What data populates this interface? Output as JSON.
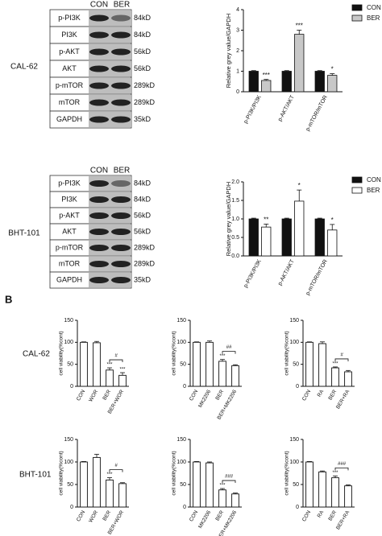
{
  "panel_label": "B",
  "blots": [
    {
      "cell_line": "CAL-62",
      "lanes": [
        "CON",
        "BER"
      ],
      "rows": [
        {
          "protein": "p-PI3K",
          "size": "84kD"
        },
        {
          "protein": "PI3K",
          "size": "84kD"
        },
        {
          "protein": "p-AKT",
          "size": "56kD"
        },
        {
          "protein": "AKT",
          "size": "56kD"
        },
        {
          "protein": "p-mTOR",
          "size": "289kD"
        },
        {
          "protein": "mTOR",
          "size": "289kD"
        },
        {
          "protein": "GAPDH",
          "size": "35kD"
        }
      ]
    },
    {
      "cell_line": "BHT-101",
      "lanes": [
        "CON",
        "BER"
      ],
      "rows": [
        {
          "protein": "p-PI3K",
          "size": "84kD"
        },
        {
          "protein": "PI3K",
          "size": "84kD"
        },
        {
          "protein": "p-AKT",
          "size": "56kD"
        },
        {
          "protein": "AKT",
          "size": "56kD"
        },
        {
          "protein": "p-mTOR",
          "size": "289kD"
        },
        {
          "protein": "mTOR",
          "size": "289kD"
        },
        {
          "protein": "GAPDH",
          "size": "35kD"
        }
      ]
    }
  ],
  "row_labels": [
    "CAL-62",
    "BHT-101"
  ],
  "chart_data": [
    {
      "type": "grouped_bar",
      "ylabel": "Relative grey value/GAPDH",
      "categories": [
        "p-PI3K/PI3K",
        "p-AKT/AKT",
        "p-mTOR/mTOR"
      ],
      "series": [
        {
          "name": "CON",
          "color": "#111111",
          "values": [
            1,
            1,
            1
          ],
          "errors": [
            0.03,
            0.03,
            0.03
          ]
        },
        {
          "name": "BER",
          "color": "#c8c8c8",
          "values": [
            0.55,
            2.8,
            0.8
          ],
          "errors": [
            0.05,
            0.2,
            0.08
          ],
          "annotations": [
            "***",
            "***",
            "*"
          ]
        }
      ],
      "ylim": [
        0,
        4
      ],
      "yticks": [
        0,
        1,
        2,
        3,
        4
      ],
      "legend": "right"
    },
    {
      "type": "grouped_bar",
      "ylabel": "Relative grey value/GAPDH",
      "categories": [
        "p-PI3K/PI3K",
        "p-AKT/AKT",
        "p-mTOR/mTOR"
      ],
      "series": [
        {
          "name": "CON",
          "color": "#111111",
          "values": [
            1,
            1,
            1
          ],
          "errors": [
            0.02,
            0.02,
            0.02
          ]
        },
        {
          "name": "BER",
          "color": "#ffffff",
          "values": [
            0.78,
            1.48,
            0.7
          ],
          "errors": [
            0.08,
            0.3,
            0.15
          ],
          "annotations": [
            "**",
            "*",
            "*"
          ]
        }
      ],
      "ylim": [
        0,
        2
      ],
      "yticks": [
        {
          "value": 0,
          "label": "0.0"
        },
        {
          "value": 0.5,
          "label": "0.5"
        },
        {
          "value": 1,
          "label": "1.0"
        },
        {
          "value": 1.5,
          "label": "1.5"
        },
        {
          "value": 2,
          "label": "2.0"
        }
      ],
      "legend": "right"
    },
    {
      "type": "bar",
      "ylabel": "cell viability(%cont)",
      "categories": [
        "CON",
        "WOR",
        "BER",
        "BER+WOR"
      ],
      "values": [
        100,
        99,
        37,
        25
      ],
      "errors": [
        1,
        3,
        5,
        6
      ],
      "annotations": [
        null,
        null,
        "***",
        "***"
      ],
      "bracket": "#",
      "color": "#ffffff",
      "ylim": [
        0,
        150
      ],
      "yticks": [
        0,
        50,
        100,
        150
      ]
    },
    {
      "type": "bar",
      "ylabel": "cell viability(%cont)",
      "categories": [
        "CON",
        "MK2206",
        "BER",
        "BER+MK2206"
      ],
      "values": [
        100,
        100,
        57,
        47
      ],
      "errors": [
        1,
        3,
        4,
        2
      ],
      "annotations": [
        null,
        null,
        "***",
        null
      ],
      "bracket": "##",
      "color": "#ffffff",
      "ylim": [
        0,
        150
      ],
      "yticks": [
        0,
        50,
        100,
        150
      ]
    },
    {
      "type": "bar",
      "ylabel": "cell viability(%cont)",
      "categories": [
        "CON",
        "RA",
        "BER",
        "BER+RA"
      ],
      "values": [
        100,
        97,
        42,
        33
      ],
      "errors": [
        1,
        4,
        2,
        3
      ],
      "annotations": [
        null,
        null,
        "***",
        null
      ],
      "bracket": "#",
      "color": "#ffffff",
      "ylim": [
        0,
        150
      ],
      "yticks": [
        0,
        50,
        100,
        150
      ]
    },
    {
      "type": "bar",
      "ylabel": "cell viability(%cont)",
      "categories": [
        "CON",
        "WOR",
        "BER",
        "BER+WOR"
      ],
      "values": [
        100,
        110,
        60,
        52
      ],
      "errors": [
        1,
        7,
        5,
        2
      ],
      "annotations": [
        null,
        null,
        "***",
        null
      ],
      "bracket": "#",
      "color": "#ffffff",
      "ylim": [
        0,
        150
      ],
      "yticks": [
        0,
        50,
        100,
        150
      ]
    },
    {
      "type": "bar",
      "ylabel": "cell viability(%cont)",
      "categories": [
        "CON",
        "MK2206",
        "BER",
        "BER+MK2206"
      ],
      "values": [
        100,
        98,
        38,
        29
      ],
      "errors": [
        1,
        2,
        3,
        2
      ],
      "annotations": [
        null,
        null,
        "***",
        null
      ],
      "bracket": "###",
      "color": "#ffffff",
      "ylim": [
        0,
        150
      ],
      "yticks": [
        0,
        50,
        100,
        150
      ]
    },
    {
      "type": "bar",
      "ylabel": "cell viability(%cont)",
      "categories": [
        "CON",
        "RA",
        "BER",
        "BER+RA"
      ],
      "values": [
        100,
        78,
        65,
        47
      ],
      "errors": [
        1,
        2,
        4,
        2
      ],
      "annotations": [
        null,
        null,
        "***",
        null
      ],
      "bracket": "###",
      "color": "#ffffff",
      "ylim": [
        0,
        150
      ],
      "yticks": [
        0,
        50,
        100,
        150
      ]
    }
  ]
}
